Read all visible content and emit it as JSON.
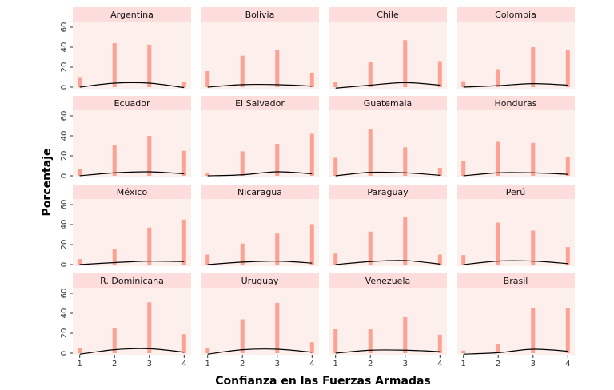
{
  "chart_data": {
    "type": "bar",
    "xlabel": "Confianza en las Fuerzas Armadas",
    "ylabel": "Porcentaje",
    "x_ticks": [
      "1",
      "2",
      "3",
      "4"
    ],
    "y_ticks": [
      "0",
      "20",
      "40",
      "60"
    ],
    "ylim": [
      -1.6,
      65.6
    ],
    "xlim": [
      0.8,
      4.2
    ],
    "colors": {
      "bar": "#fba294",
      "panel": "#fdf0ec",
      "strip": "#fddcdc",
      "curve": "#000000"
    },
    "panels": [
      {
        "name": "Argentina",
        "values": [
          10,
          44,
          42.5,
          5
        ],
        "curve": [
          0,
          4,
          4,
          -0.5
        ]
      },
      {
        "name": "Bolivia",
        "values": [
          16,
          31.5,
          37.5,
          14.5
        ],
        "curve": [
          0,
          2.5,
          2.5,
          1
        ]
      },
      {
        "name": "Chile",
        "values": [
          5,
          25,
          47,
          26
        ],
        "curve": [
          -1,
          2,
          4.5,
          2
        ]
      },
      {
        "name": "Colombia",
        "values": [
          6,
          18,
          40,
          37.5
        ],
        "curve": [
          0,
          1.5,
          3.5,
          2
        ]
      },
      {
        "name": "Ecuador",
        "values": [
          6.5,
          31,
          40,
          25
        ],
        "curve": [
          0,
          3,
          4,
          2
        ]
      },
      {
        "name": "El Salvador",
        "values": [
          3,
          24.5,
          32,
          42
        ],
        "curve": [
          0,
          1,
          4,
          2
        ]
      },
      {
        "name": "Guatemala",
        "values": [
          18,
          47,
          28.5,
          8
        ],
        "curve": [
          0,
          3.5,
          3,
          0.5
        ]
      },
      {
        "name": "Honduras",
        "values": [
          15,
          34,
          33,
          19
        ],
        "curve": [
          0,
          3,
          3,
          1.5
        ]
      },
      {
        "name": "México",
        "values": [
          5.5,
          16,
          37,
          45
        ],
        "curve": [
          0,
          2,
          3.5,
          3
        ]
      },
      {
        "name": "Nicaragua",
        "values": [
          10,
          21,
          31,
          40.5
        ],
        "curve": [
          0,
          2.5,
          3.5,
          1.5
        ]
      },
      {
        "name": "Paraguay",
        "values": [
          11,
          33,
          48,
          10
        ],
        "curve": [
          0,
          3,
          4,
          0.5
        ]
      },
      {
        "name": "Perú",
        "values": [
          9.5,
          42,
          34,
          17.5
        ],
        "curve": [
          0,
          3.5,
          3.5,
          1
        ]
      },
      {
        "name": "R. Dominicana",
        "values": [
          5.5,
          25.5,
          51,
          19
        ],
        "curve": [
          -1,
          3.5,
          4.5,
          1
        ]
      },
      {
        "name": "Uruguay",
        "values": [
          5.5,
          34,
          50.5,
          11
        ],
        "curve": [
          -1,
          3.5,
          4,
          1
        ]
      },
      {
        "name": "Venezuela",
        "values": [
          24,
          24,
          36,
          18.5
        ],
        "curve": [
          0,
          3,
          3,
          1.5
        ]
      },
      {
        "name": "Brasil",
        "values": [
          2.5,
          9,
          45,
          45
        ],
        "curve": [
          -1,
          0.5,
          4,
          2
        ]
      }
    ]
  }
}
